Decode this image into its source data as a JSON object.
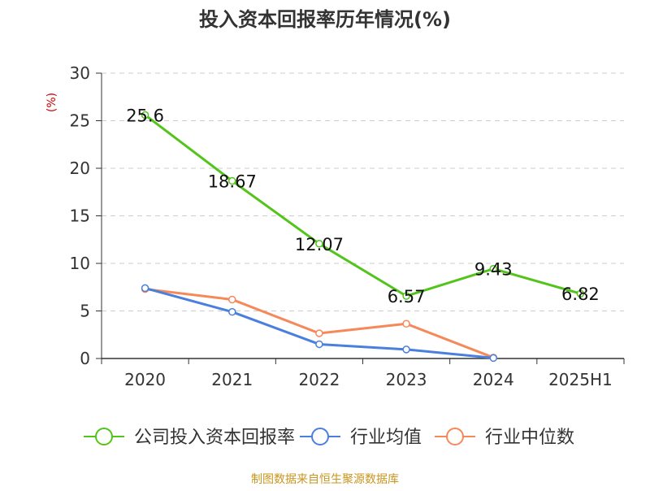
{
  "chart_data": {
    "type": "line",
    "title": "投入资本回报率历年情况(%)",
    "ylabel": "(%)",
    "xlabel": "",
    "categories": [
      "2020",
      "2021",
      "2022",
      "2023",
      "2024",
      "2025H1"
    ],
    "ylim": [
      0,
      30
    ],
    "yticks": [
      0,
      5,
      10,
      15,
      20,
      25,
      30
    ],
    "grid": true,
    "legend_position": "bottom",
    "series": [
      {
        "name": "公司投入资本回报率",
        "color": "#52c41a",
        "values": [
          25.6,
          18.67,
          12.07,
          6.57,
          9.43,
          6.82
        ],
        "labels": [
          "25.6",
          "18.67",
          "12.07",
          "6.57",
          "9.43",
          "6.82"
        ]
      },
      {
        "name": "行业均值",
        "color": "#4a7fde",
        "values": [
          7.4,
          4.9,
          1.5,
          0.95,
          0.05,
          null
        ]
      },
      {
        "name": "行业中位数",
        "color": "#f5895a",
        "values": [
          7.3,
          6.2,
          2.65,
          3.65,
          0.1,
          null
        ]
      }
    ]
  },
  "source": "制图数据来自恒生聚源数据库"
}
